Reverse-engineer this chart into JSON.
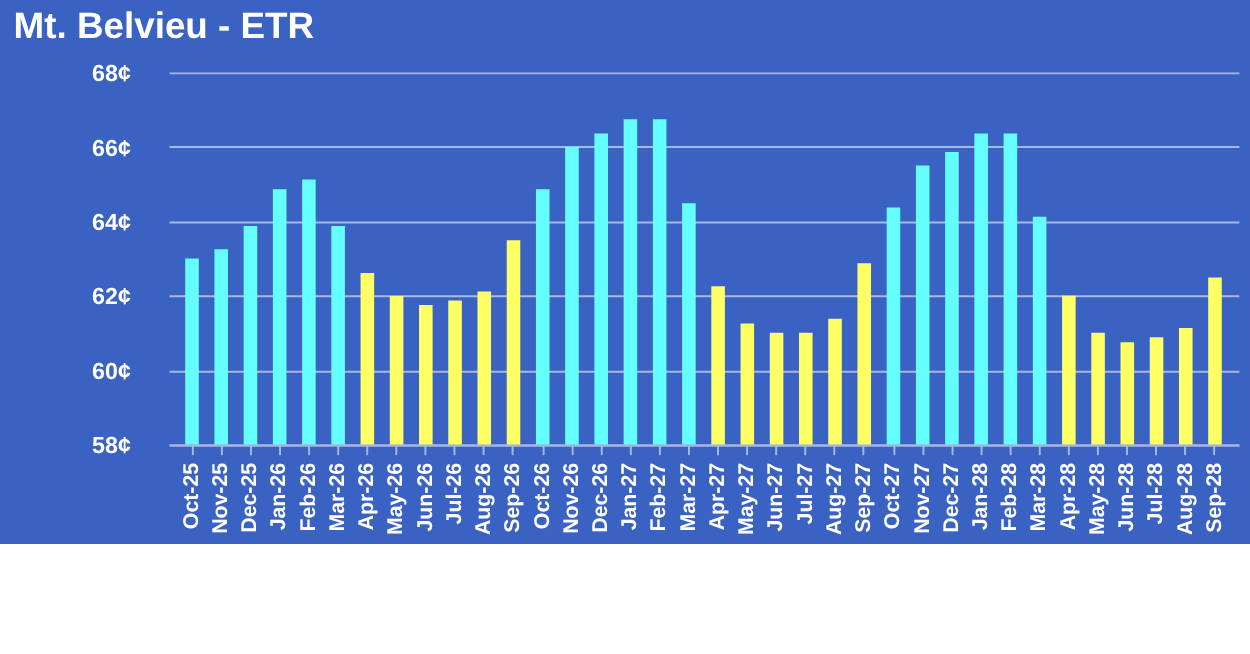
{
  "chart_data": {
    "type": "bar",
    "title": "Mt. Belvieu - ETR",
    "categories": [
      "Oct-25",
      "Nov-25",
      "Dec-25",
      "Jan-26",
      "Feb-26",
      "Mar-26",
      "Apr-26",
      "May-26",
      "Jun-26",
      "Jul-26",
      "Aug-26",
      "Sep-26",
      "Oct-26",
      "Nov-26",
      "Dec-26",
      "Jan-27",
      "Feb-27",
      "Mar-27",
      "Apr-27",
      "May-27",
      "Jun-27",
      "Jul-27",
      "Aug-27",
      "Sep-27",
      "Oct-27",
      "Nov-27",
      "Dec-27",
      "Jan-28",
      "Feb-28",
      "Mar-28",
      "Apr-28",
      "May-28",
      "Jun-28",
      "Jul-28",
      "Aug-28",
      "Sep-28"
    ],
    "values": [
      63.0,
      63.25,
      63.87,
      64.86,
      65.12,
      63.87,
      62.61,
      61.99,
      61.75,
      61.87,
      62.11,
      63.49,
      64.86,
      66.0,
      66.36,
      66.74,
      66.74,
      64.48,
      62.25,
      61.25,
      61.0,
      61.0,
      61.38,
      62.87,
      64.37,
      65.5,
      65.86,
      66.36,
      66.36,
      64.12,
      62.0,
      61.0,
      60.75,
      60.88,
      61.13,
      62.49
    ],
    "colors": [
      "#66ffff",
      "#66ffff",
      "#66ffff",
      "#66ffff",
      "#66ffff",
      "#66ffff",
      "#ffff66",
      "#ffff66",
      "#ffff66",
      "#ffff66",
      "#ffff66",
      "#ffff66",
      "#66ffff",
      "#66ffff",
      "#66ffff",
      "#66ffff",
      "#66ffff",
      "#66ffff",
      "#ffff66",
      "#ffff66",
      "#ffff66",
      "#ffff66",
      "#ffff66",
      "#ffff66",
      "#66ffff",
      "#66ffff",
      "#66ffff",
      "#66ffff",
      "#66ffff",
      "#66ffff",
      "#ffff66",
      "#ffff66",
      "#ffff66",
      "#ffff66",
      "#ffff66",
      "#ffff66"
    ],
    "ylim": [
      58,
      68
    ],
    "yticks": [
      {
        "value": 58,
        "label": "58¢"
      },
      {
        "value": 60,
        "label": "60¢"
      },
      {
        "value": 62,
        "label": "62¢"
      },
      {
        "value": 64,
        "label": "64¢"
      },
      {
        "value": 66,
        "label": "66¢"
      },
      {
        "value": 68,
        "label": "68¢"
      }
    ],
    "grid": "y"
  }
}
